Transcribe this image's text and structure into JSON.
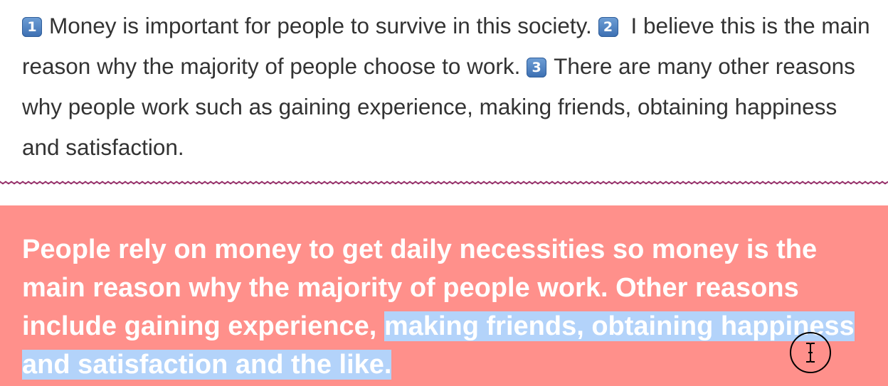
{
  "original": {
    "badges": [
      "1",
      "2",
      "3"
    ],
    "sentence1": "Money is important for people to survive in this society.",
    "sentence2": "I believe this is the main reason why the majority of people choose to work.",
    "sentence3": "There are many other reasons why people work such as gaining experience, making friends, obtaining happiness and satisfaction."
  },
  "summary": {
    "text_plain": "People rely on money to get daily necessities so money is the main reason why the majority of people work. Other reasons include gaining experience,",
    "text_selected": "making friends, obtaining happiness and satisfaction and the like.",
    "panel_color": "#ff908b",
    "selection_color": "#b3d3fa"
  },
  "divider_color": "#8e1d5e",
  "cursor": {
    "icon": "text-cursor-icon"
  }
}
